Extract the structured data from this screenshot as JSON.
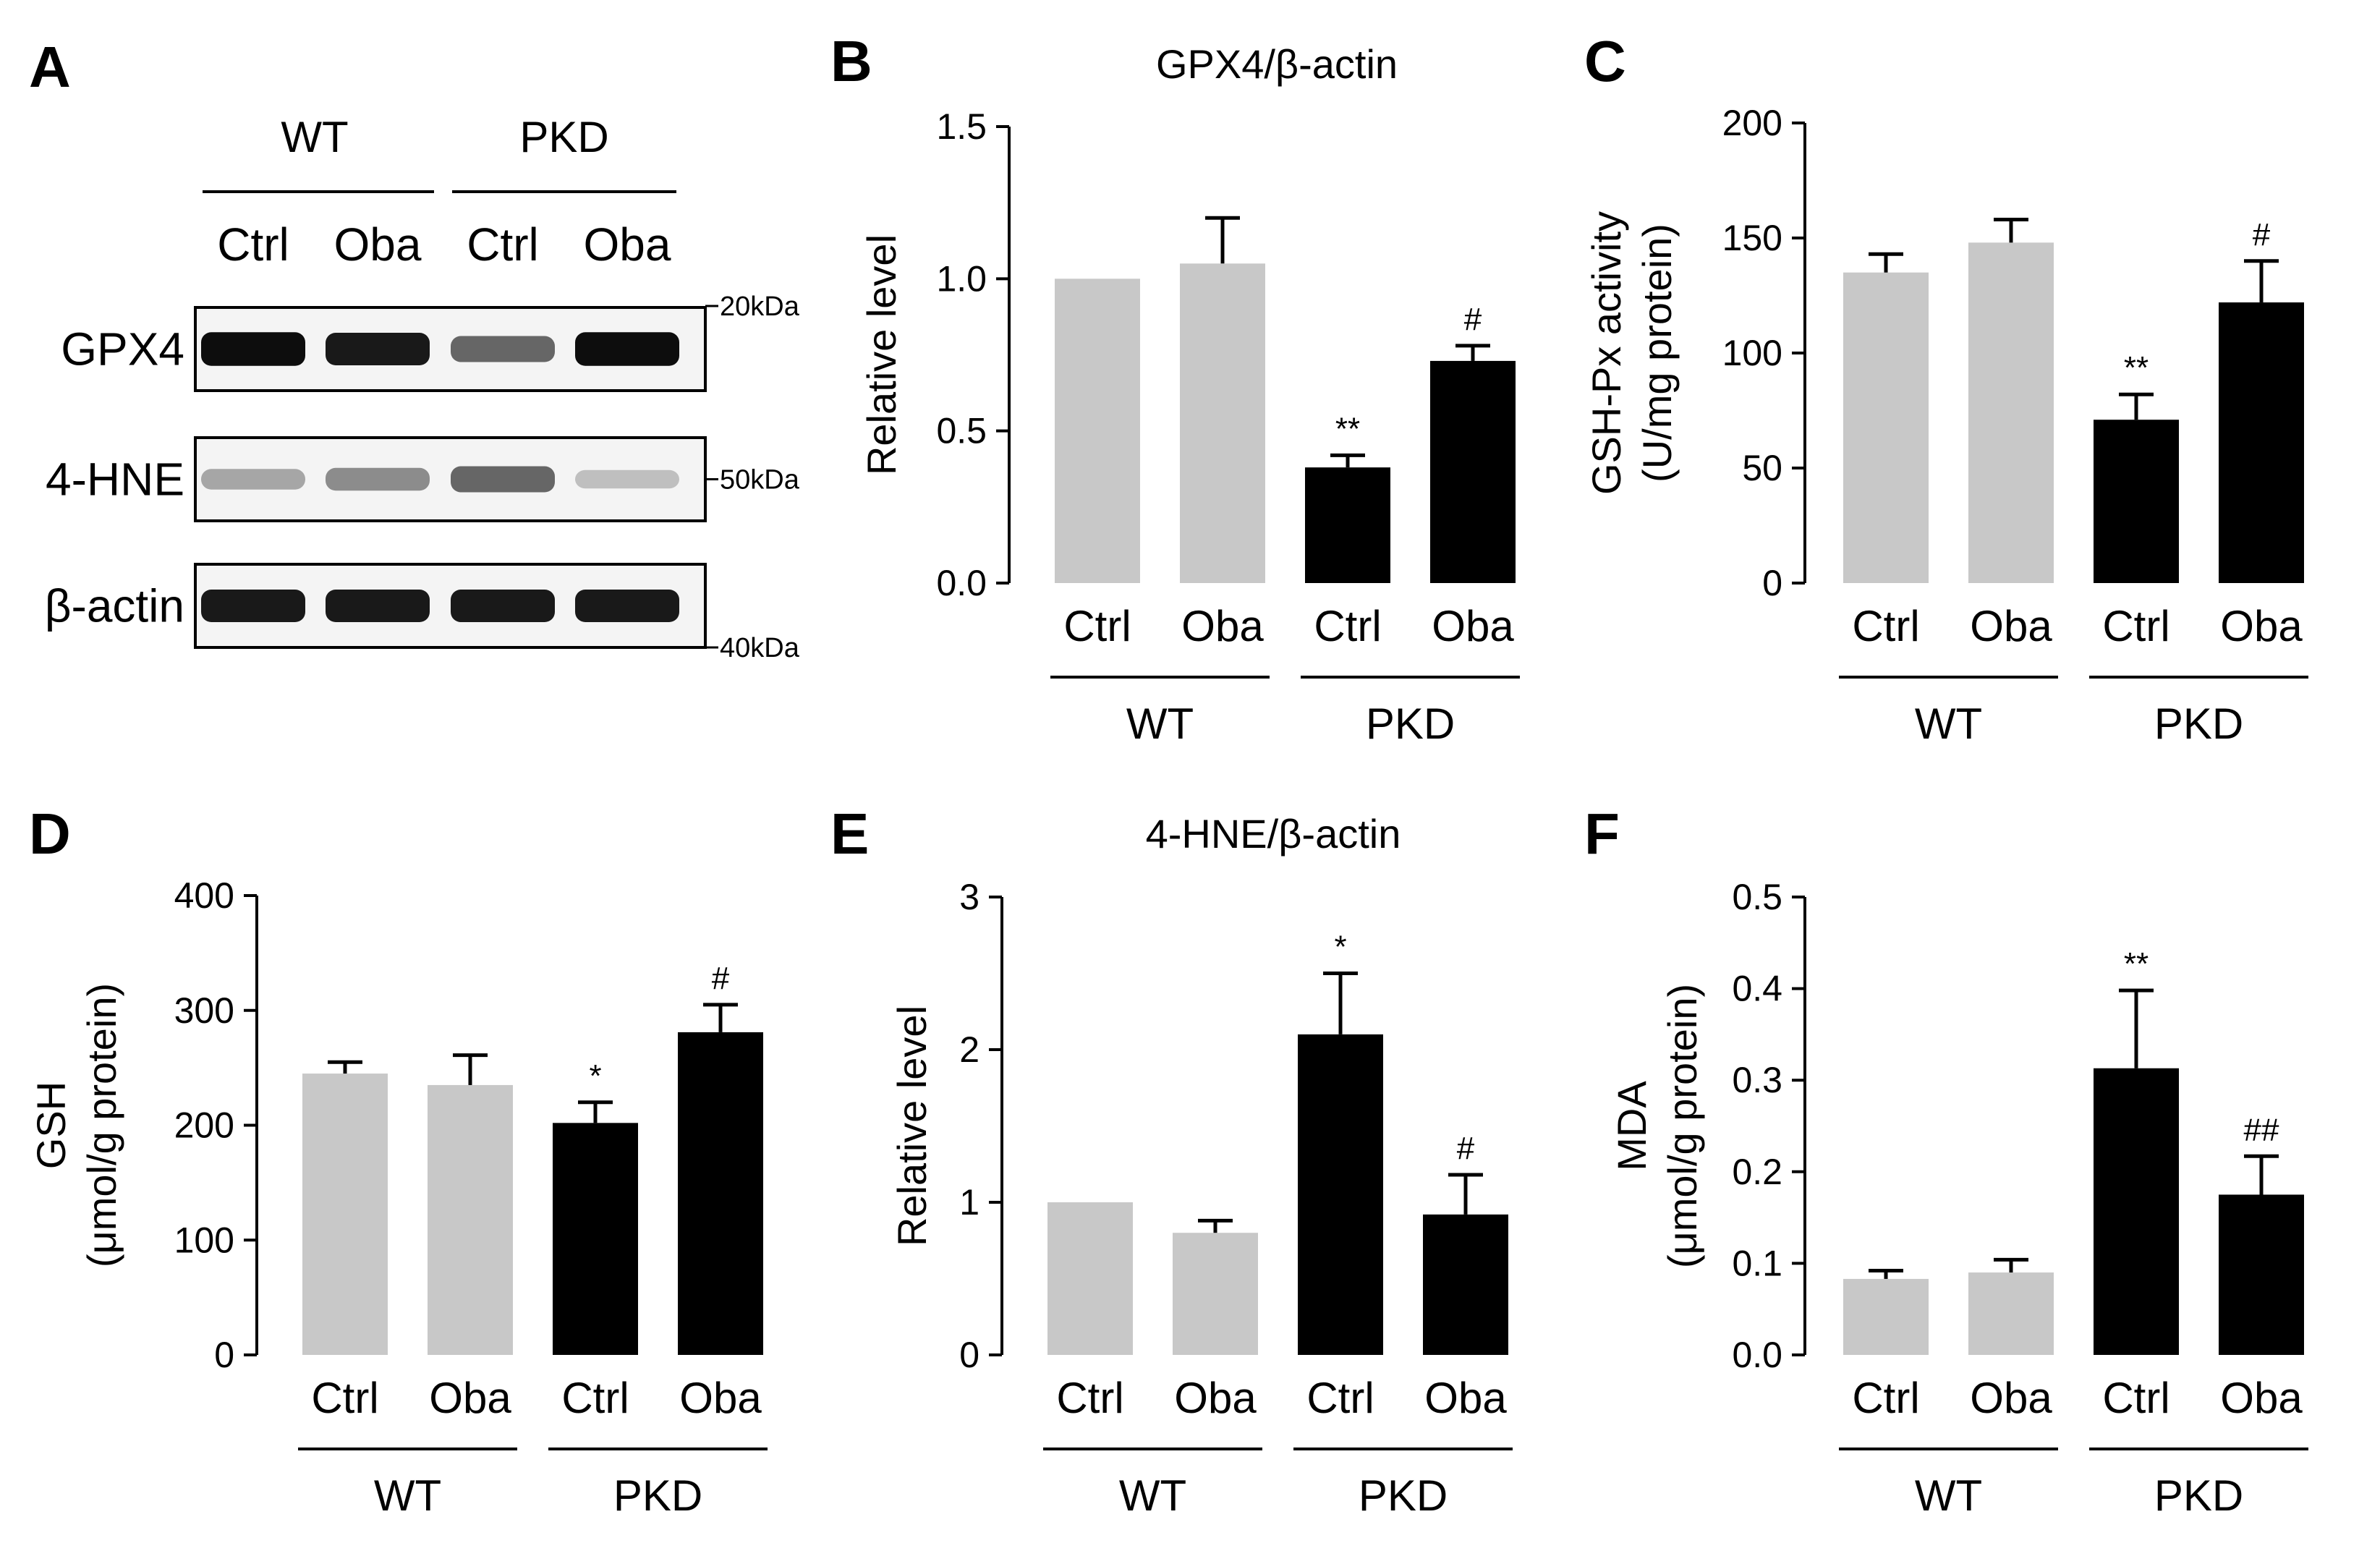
{
  "chart_data": [
    {
      "panel": "B",
      "type": "bar",
      "title": "GPX4/β-actin",
      "ylabel_lines": [
        "Relative level"
      ],
      "ylim": [
        0,
        1.5
      ],
      "yticks": [
        "0.0",
        "0.5",
        "1.0",
        "1.5"
      ],
      "ytick_values": [
        0,
        0.5,
        1.0,
        1.5
      ],
      "categories": [
        "Ctrl",
        "Oba",
        "Ctrl",
        "Oba"
      ],
      "groups": [
        {
          "name": "WT",
          "span": [
            0,
            1
          ]
        },
        {
          "name": "PKD",
          "span": [
            2,
            3
          ]
        }
      ],
      "values": [
        1.0,
        1.05,
        0.38,
        0.73
      ],
      "errors": [
        0,
        0.15,
        0.04,
        0.05
      ],
      "colors": [
        "#c8c8c8",
        "#c8c8c8",
        "#000000",
        "#000000"
      ],
      "significance": [
        "",
        "",
        "**",
        "#"
      ]
    },
    {
      "panel": "C",
      "type": "bar",
      "title": "",
      "ylabel_lines": [
        "GSH-Px activity",
        "(U/mg protein)"
      ],
      "ylim": [
        0,
        200
      ],
      "yticks": [
        "0",
        "50",
        "100",
        "150",
        "200"
      ],
      "ytick_values": [
        0,
        50,
        100,
        150,
        200
      ],
      "categories": [
        "Ctrl",
        "Oba",
        "Ctrl",
        "Oba"
      ],
      "groups": [
        {
          "name": "WT",
          "span": [
            0,
            1
          ]
        },
        {
          "name": "PKD",
          "span": [
            2,
            3
          ]
        }
      ],
      "values": [
        135,
        148,
        71,
        122
      ],
      "errors": [
        8,
        10,
        11,
        18
      ],
      "colors": [
        "#c8c8c8",
        "#c8c8c8",
        "#000000",
        "#000000"
      ],
      "significance": [
        "",
        "",
        "**",
        "#"
      ]
    },
    {
      "panel": "D",
      "type": "bar",
      "title": "",
      "ylabel_lines": [
        "GSH",
        "(μmol/g protein)"
      ],
      "ylim": [
        0,
        400
      ],
      "yticks": [
        "0",
        "100",
        "200",
        "300",
        "400"
      ],
      "ytick_values": [
        0,
        100,
        200,
        300,
        400
      ],
      "categories": [
        "Ctrl",
        "Oba",
        "Ctrl",
        "Oba"
      ],
      "groups": [
        {
          "name": "WT",
          "span": [
            0,
            1
          ]
        },
        {
          "name": "PKD",
          "span": [
            2,
            3
          ]
        }
      ],
      "values": [
        245,
        235,
        202,
        281
      ],
      "errors": [
        10,
        26,
        18,
        24
      ],
      "colors": [
        "#c8c8c8",
        "#c8c8c8",
        "#000000",
        "#000000"
      ],
      "significance": [
        "",
        "",
        "*",
        "#"
      ]
    },
    {
      "panel": "E",
      "type": "bar",
      "title": "4-HNE/β-actin",
      "ylabel_lines": [
        "Relative level"
      ],
      "ylim": [
        0,
        3
      ],
      "yticks": [
        "0",
        "1",
        "2",
        "3"
      ],
      "ytick_values": [
        0,
        1,
        2,
        3
      ],
      "categories": [
        "Ctrl",
        "Oba",
        "Ctrl",
        "Oba"
      ],
      "groups": [
        {
          "name": "WT",
          "span": [
            0,
            1
          ]
        },
        {
          "name": "PKD",
          "span": [
            2,
            3
          ]
        }
      ],
      "values": [
        1.0,
        0.8,
        2.1,
        0.92
      ],
      "errors": [
        0,
        0.08,
        0.4,
        0.26
      ],
      "colors": [
        "#c8c8c8",
        "#c8c8c8",
        "#000000",
        "#000000"
      ],
      "significance": [
        "",
        "",
        "*",
        "#"
      ]
    },
    {
      "panel": "F",
      "type": "bar",
      "title": "",
      "ylabel_lines": [
        "MDA",
        "(μmol/g protein)"
      ],
      "ylim": [
        0,
        0.5
      ],
      "yticks": [
        "0.0",
        "0.1",
        "0.2",
        "0.3",
        "0.4",
        "0.5"
      ],
      "ytick_values": [
        0,
        0.1,
        0.2,
        0.3,
        0.4,
        0.5
      ],
      "categories": [
        "Ctrl",
        "Oba",
        "Ctrl",
        "Oba"
      ],
      "groups": [
        {
          "name": "WT",
          "span": [
            0,
            1
          ]
        },
        {
          "name": "PKD",
          "span": [
            2,
            3
          ]
        }
      ],
      "values": [
        0.083,
        0.09,
        0.313,
        0.175
      ],
      "errors": [
        0.009,
        0.014,
        0.085,
        0.042
      ],
      "colors": [
        "#c8c8c8",
        "#c8c8c8",
        "#000000",
        "#000000"
      ],
      "significance": [
        "",
        "",
        "**",
        "##"
      ]
    }
  ],
  "blot": {
    "panel": "A",
    "groups": [
      "WT",
      "PKD"
    ],
    "lanes": [
      "Ctrl",
      "Oba",
      "Ctrl",
      "Oba"
    ],
    "rows": [
      {
        "label": "GPX4",
        "marker": "20kDa",
        "intensity": [
          0.95,
          0.9,
          0.6,
          0.95
        ]
      },
      {
        "label": "4-HNE",
        "marker": "50kDa",
        "intensity": [
          0.35,
          0.45,
          0.6,
          0.25
        ]
      },
      {
        "label": "β-actin",
        "marker": "40kDa",
        "intensity": [
          0.9,
          0.9,
          0.9,
          0.9
        ]
      }
    ]
  }
}
